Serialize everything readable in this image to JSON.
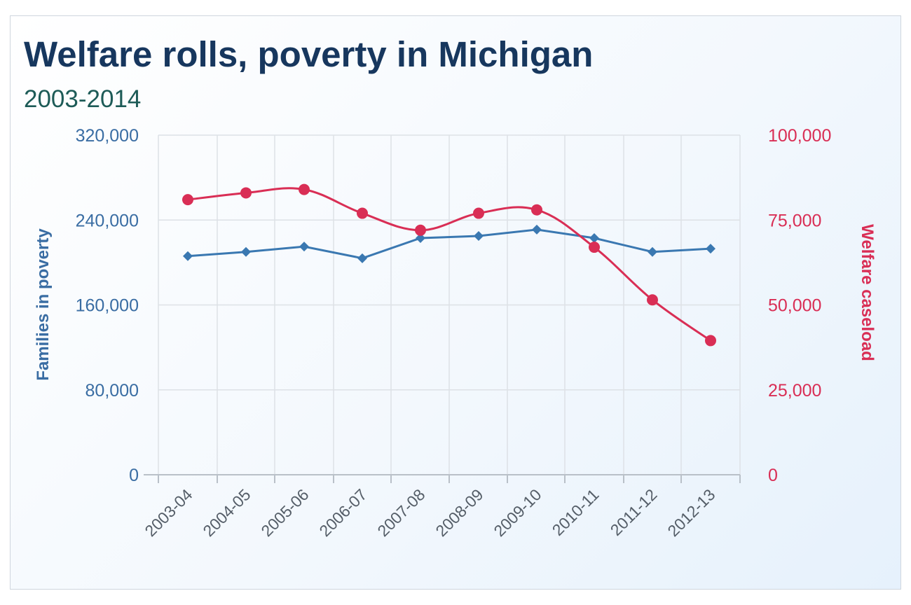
{
  "header": {
    "title": "Welfare rolls, poverty in Michigan",
    "subtitle": "2003-2014"
  },
  "chart_data": {
    "type": "line",
    "title": "Welfare rolls, poverty in Michigan",
    "subtitle": "2003-2014",
    "categories": [
      "2003-04",
      "2004-05",
      "2005-06",
      "2006-07",
      "2007-08",
      "2008-09",
      "2009-10",
      "2010-11",
      "2011-12",
      "2012-13"
    ],
    "y_left": {
      "label": "Families in poverty",
      "range": [
        0,
        320000
      ],
      "ticks": [
        "0",
        "80,000",
        "160,000",
        "240,000",
        "320,000"
      ],
      "tick_values": [
        0,
        80000,
        160000,
        240000,
        320000
      ]
    },
    "y_right": {
      "label": "Welfare caseload",
      "range": [
        0,
        100000
      ],
      "ticks": [
        "0",
        "25,000",
        "50,000",
        "75,000",
        "100,000"
      ],
      "tick_values": [
        0,
        25000,
        50000,
        75000,
        100000
      ]
    },
    "grid": true,
    "series": [
      {
        "name": "Families in poverty",
        "axis": "left",
        "color": "#3a78b1",
        "marker": "diamond",
        "values": [
          206000,
          210000,
          215000,
          204000,
          223000,
          225000,
          231000,
          223000,
          210000,
          213000
        ]
      },
      {
        "name": "Welfare caseload",
        "axis": "right",
        "color": "#d92e55",
        "marker": "circle",
        "values": [
          81000,
          83000,
          84000,
          77000,
          72000,
          77000,
          78000,
          67000,
          51500,
          39500
        ]
      }
    ],
    "colors": {
      "left_axis": "#3a6da3",
      "right_axis": "#d92e55",
      "grid": "#dde1e6"
    }
  }
}
